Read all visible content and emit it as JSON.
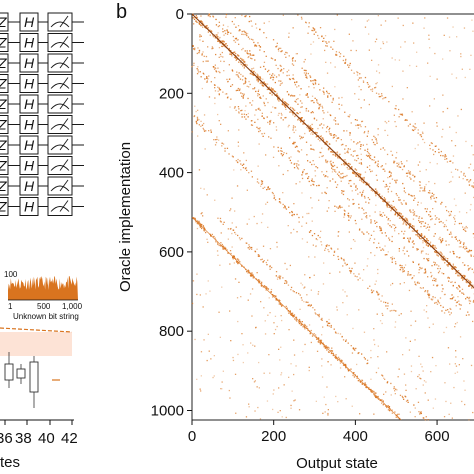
{
  "colors": {
    "accent": "#d9741f",
    "dark_diagonal": "#8a3f12",
    "band": "#fde3d6",
    "ink": "#111111"
  },
  "panel_a": {
    "gate_h_label": "H",
    "gate_z_label": "Z",
    "measure_icon": "meter-icon",
    "rows": 10,
    "histogram_xlabel": "Unknown bit string",
    "histogram_xticks": [
      "1",
      "500",
      "1,000"
    ],
    "histogram_ytick": "100",
    "bottom_xticks": [
      "36",
      "38",
      "40",
      "42"
    ],
    "bottom_xlabel_fragment": "tes"
  },
  "chart_data": {
    "type": "scatter",
    "panel_label": "b",
    "xlabel": "Output state",
    "ylabel": "Oracle implementation",
    "xlim": [
      0,
      710
    ],
    "ylim": [
      1024,
      0
    ],
    "xticks": [
      0,
      200,
      400,
      600
    ],
    "yticks": [
      0,
      200,
      400,
      600,
      800,
      1000
    ],
    "grid": false,
    "series": [
      {
        "values_description": "y = x",
        "x": [
          0,
          710
        ],
        "y": [
          0,
          710
        ]
      },
      {
        "values_description": "x = y - 512",
        "x": [
          0,
          512
        ],
        "y": [
          512,
          1024
        ]
      }
    ],
    "scatter_seed": 7
  }
}
